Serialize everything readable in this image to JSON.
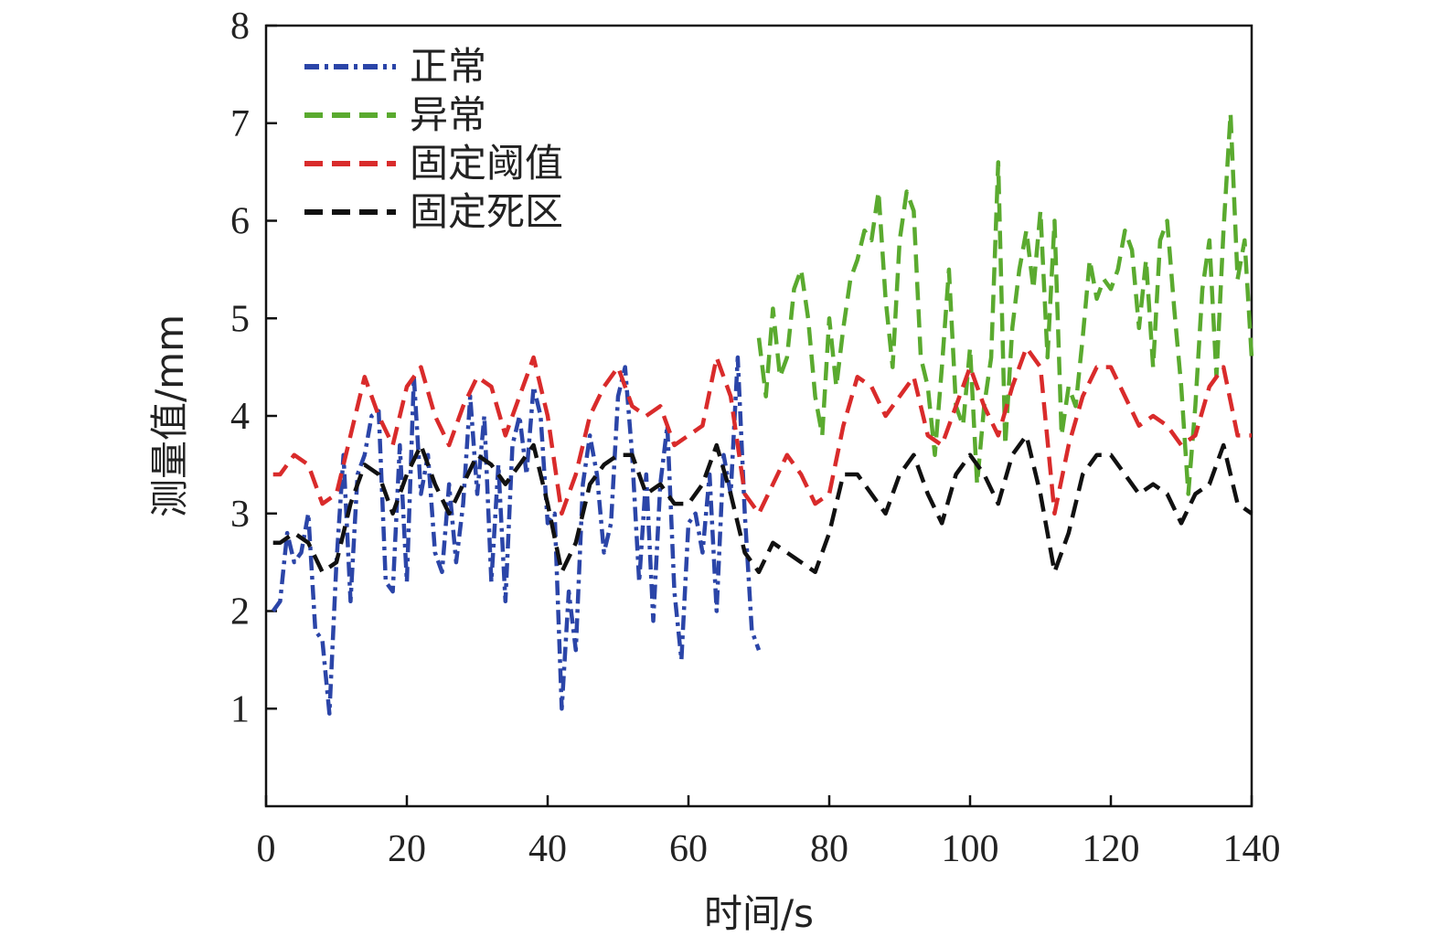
{
  "chart_data": {
    "type": "line",
    "xlabel": "时间/s",
    "ylabel": "测量值/mm",
    "xlim": [
      0,
      140
    ],
    "ylim": [
      0,
      8
    ],
    "xticks": [
      0,
      20,
      40,
      60,
      80,
      100,
      120,
      140
    ],
    "yticks": [
      1,
      2,
      3,
      4,
      5,
      6,
      7,
      8
    ],
    "grid": false,
    "legend_position": "top-left",
    "series": [
      {
        "name": "正常",
        "color": "#2b45a8",
        "dash": "dashdot",
        "x": [
          1,
          2,
          3,
          4,
          5,
          6,
          7,
          8,
          9,
          10,
          11,
          12,
          13,
          14,
          15,
          16,
          17,
          18,
          19,
          20,
          21,
          22,
          23,
          24,
          25,
          26,
          27,
          28,
          29,
          30,
          31,
          32,
          33,
          34,
          35,
          36,
          37,
          38,
          39,
          40,
          41,
          42,
          43,
          44,
          45,
          46,
          47,
          48,
          49,
          50,
          51,
          52,
          53,
          54,
          55,
          56,
          57,
          58,
          59,
          60,
          61,
          62,
          63,
          64,
          65,
          66,
          67,
          68,
          69,
          70
        ],
        "y": [
          2.0,
          2.1,
          2.8,
          2.5,
          2.6,
          3.0,
          1.8,
          1.7,
          0.95,
          2.5,
          3.6,
          2.1,
          3.4,
          3.6,
          4.0,
          4.05,
          2.3,
          2.2,
          3.7,
          2.3,
          4.4,
          3.2,
          3.6,
          2.6,
          2.4,
          3.3,
          2.5,
          3.1,
          4.2,
          3.2,
          4.0,
          2.3,
          3.5,
          2.1,
          3.7,
          4.0,
          3.4,
          4.3,
          4.0,
          2.9,
          3.0,
          1.0,
          2.2,
          1.6,
          3.3,
          3.8,
          3.4,
          2.6,
          2.9,
          4.2,
          4.5,
          3.6,
          2.3,
          3.4,
          1.9,
          3.3,
          3.9,
          2.2,
          1.5,
          2.9,
          3.0,
          2.6,
          3.4,
          2.0,
          3.6,
          3.2,
          4.6,
          3.0,
          1.8,
          1.6
        ]
      },
      {
        "name": "异常",
        "color": "#5aaa2f",
        "dash": "dashed",
        "x": [
          70,
          71,
          72,
          73,
          74,
          75,
          76,
          77,
          78,
          79,
          80,
          81,
          82,
          83,
          84,
          85,
          86,
          87,
          88,
          89,
          90,
          91,
          92,
          93,
          94,
          95,
          96,
          97,
          98,
          99,
          100,
          101,
          102,
          103,
          104,
          105,
          106,
          107,
          108,
          109,
          110,
          111,
          112,
          113,
          114,
          115,
          116,
          117,
          118,
          119,
          120,
          121,
          122,
          123,
          124,
          125,
          126,
          127,
          128,
          129,
          130,
          131,
          132,
          133,
          134,
          135,
          136,
          137,
          138,
          139,
          140
        ],
        "y": [
          4.8,
          4.2,
          5.1,
          4.4,
          4.6,
          5.3,
          5.5,
          5.0,
          4.2,
          3.8,
          5.0,
          4.3,
          4.9,
          5.4,
          5.6,
          5.9,
          5.8,
          6.3,
          5.2,
          4.5,
          5.8,
          6.3,
          6.1,
          4.6,
          4.3,
          3.6,
          4.5,
          5.5,
          4.1,
          3.9,
          4.7,
          3.3,
          4.1,
          4.6,
          6.6,
          3.7,
          4.9,
          5.5,
          5.9,
          5.3,
          6.1,
          4.6,
          6.0,
          3.8,
          4.3,
          4.1,
          4.8,
          5.6,
          5.2,
          5.4,
          5.3,
          5.5,
          5.9,
          5.7,
          4.9,
          5.6,
          4.5,
          5.8,
          6.0,
          5.1,
          4.3,
          3.2,
          4.1,
          5.3,
          5.8,
          4.4,
          5.9,
          7.1,
          5.4,
          5.8,
          4.6
        ]
      },
      {
        "name": "固定阈值",
        "color": "#d92b2b",
        "dash": "dashed",
        "x": [
          1,
          2,
          4,
          6,
          8,
          10,
          12,
          14,
          16,
          18,
          20,
          22,
          24,
          26,
          28,
          30,
          32,
          34,
          36,
          38,
          40,
          42,
          44,
          46,
          48,
          50,
          52,
          54,
          56,
          58,
          60,
          62,
          64,
          66,
          68,
          70,
          72,
          74,
          76,
          78,
          80,
          82,
          84,
          86,
          88,
          90,
          92,
          94,
          96,
          98,
          100,
          102,
          104,
          106,
          108,
          110,
          112,
          114,
          116,
          118,
          120,
          122,
          124,
          126,
          128,
          130,
          132,
          134,
          136,
          138,
          140
        ],
        "y": [
          3.4,
          3.4,
          3.6,
          3.5,
          3.1,
          3.2,
          3.8,
          4.4,
          4.0,
          3.7,
          4.3,
          4.5,
          4.0,
          3.7,
          4.1,
          4.4,
          4.3,
          3.8,
          4.2,
          4.6,
          4.0,
          3.0,
          3.4,
          4.0,
          4.3,
          4.5,
          4.1,
          4.0,
          4.1,
          3.7,
          3.8,
          3.9,
          4.6,
          4.2,
          3.2,
          3.0,
          3.3,
          3.6,
          3.4,
          3.1,
          3.2,
          3.9,
          4.4,
          4.3,
          4.0,
          4.2,
          4.4,
          3.8,
          3.7,
          4.1,
          4.5,
          4.1,
          3.8,
          4.3,
          4.7,
          4.5,
          3.0,
          3.7,
          4.2,
          4.5,
          4.5,
          4.2,
          3.9,
          4.0,
          3.9,
          3.7,
          3.8,
          4.3,
          4.5,
          3.8,
          3.8
        ]
      },
      {
        "name": "固定死区",
        "color": "#111111",
        "dash": "dashed",
        "x": [
          1,
          2,
          4,
          6,
          8,
          10,
          12,
          14,
          16,
          18,
          20,
          22,
          24,
          26,
          28,
          30,
          32,
          34,
          36,
          38,
          40,
          42,
          44,
          46,
          48,
          50,
          52,
          54,
          56,
          58,
          60,
          62,
          64,
          66,
          68,
          70,
          72,
          74,
          76,
          78,
          80,
          82,
          84,
          86,
          88,
          90,
          92,
          94,
          96,
          98,
          100,
          102,
          104,
          106,
          108,
          110,
          112,
          114,
          116,
          118,
          120,
          122,
          124,
          126,
          128,
          130,
          132,
          134,
          136,
          138,
          140
        ],
        "y": [
          2.7,
          2.7,
          2.8,
          2.7,
          2.4,
          2.5,
          3.1,
          3.5,
          3.4,
          3.0,
          3.4,
          3.7,
          3.3,
          3.0,
          3.3,
          3.6,
          3.5,
          3.3,
          3.5,
          3.7,
          3.1,
          2.4,
          2.7,
          3.3,
          3.5,
          3.6,
          3.6,
          3.2,
          3.3,
          3.1,
          3.1,
          3.3,
          3.7,
          3.2,
          2.6,
          2.4,
          2.7,
          2.6,
          2.5,
          2.4,
          2.8,
          3.4,
          3.4,
          3.2,
          3.0,
          3.4,
          3.6,
          3.2,
          2.9,
          3.4,
          3.6,
          3.4,
          3.1,
          3.6,
          3.8,
          3.2,
          2.4,
          2.8,
          3.4,
          3.6,
          3.6,
          3.4,
          3.2,
          3.3,
          3.2,
          2.9,
          3.2,
          3.3,
          3.7,
          3.1,
          3.0
        ]
      }
    ]
  }
}
